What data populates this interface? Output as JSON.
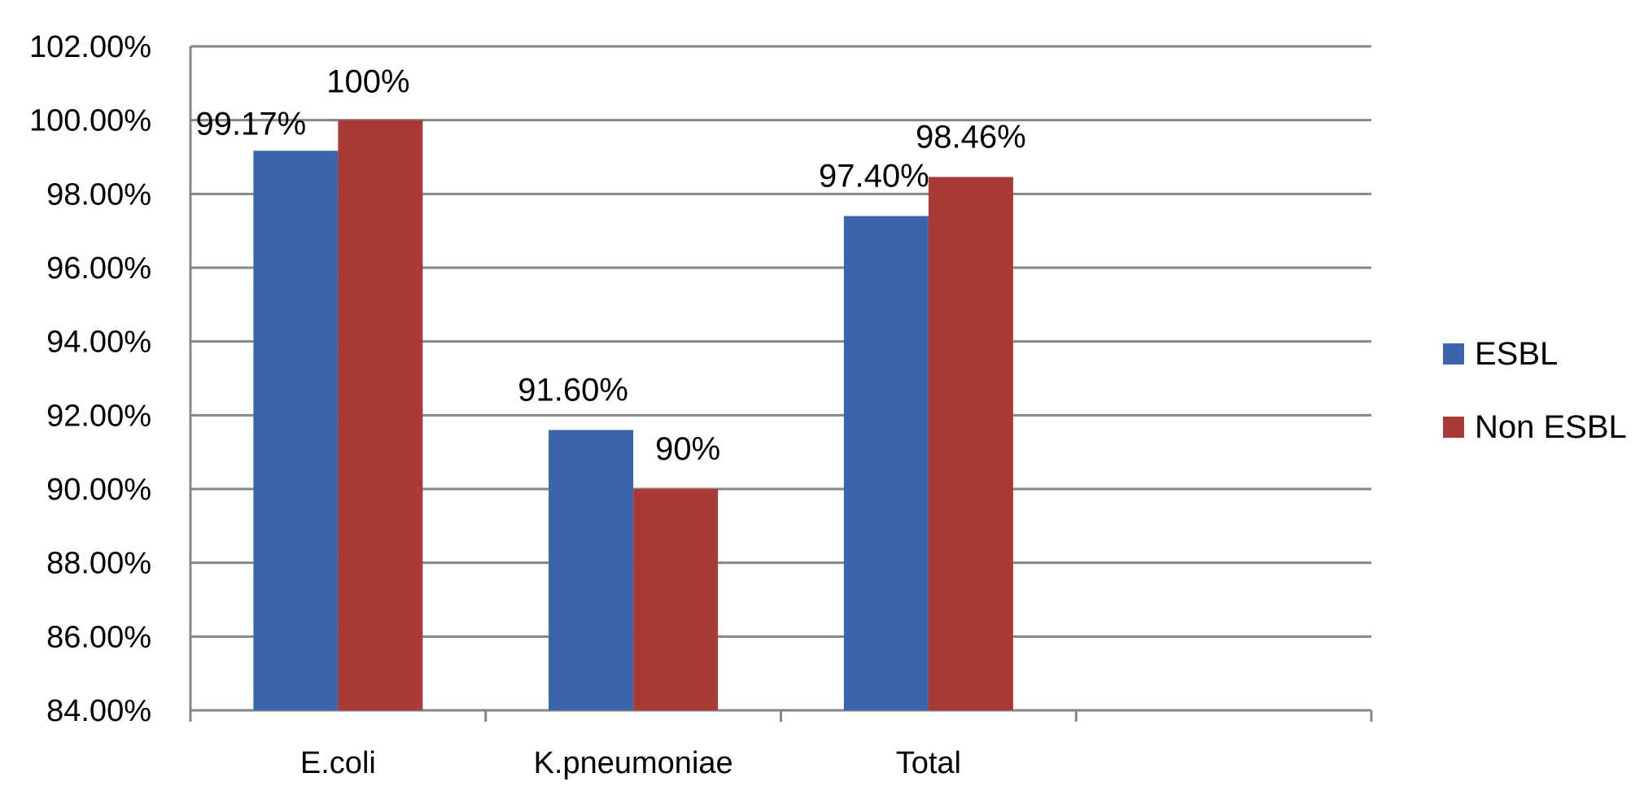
{
  "chart_data": {
    "type": "bar",
    "categories": [
      "E.coli",
      "K.pneumoniae",
      "Total",
      ""
    ],
    "series": [
      {
        "name": "ESBL",
        "color": "#3A65A8",
        "values": [
          99.17,
          91.6,
          97.4,
          null
        ],
        "labels": [
          "99.17%",
          "91.60%",
          "97.40%",
          ""
        ]
      },
      {
        "name": "Non ESBL",
        "color": "#AA3A37",
        "values": [
          100,
          90,
          98.46,
          null
        ],
        "labels": [
          "100%",
          "90%",
          "98.46%",
          ""
        ]
      }
    ],
    "ylim": [
      84,
      102
    ],
    "yticks": [
      84,
      86,
      88,
      90,
      92,
      94,
      96,
      98,
      100,
      102
    ],
    "ytick_labels": [
      "84.00%",
      "86.00%",
      "88.00%",
      "90.00%",
      "92.00%",
      "94.00%",
      "96.00%",
      "98.00%",
      "100.00%",
      "102.00%"
    ],
    "grid": true,
    "legend_position": "right",
    "title": "",
    "xlabel": "",
    "ylabel": ""
  }
}
